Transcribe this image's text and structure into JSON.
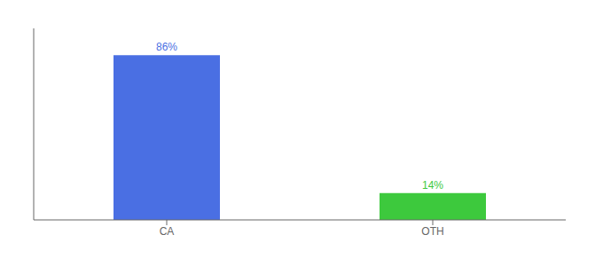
{
  "chart_data": {
    "type": "bar",
    "categories": [
      "CA",
      "OTH"
    ],
    "values": [
      86,
      14
    ],
    "value_labels": [
      "86%",
      "14%"
    ],
    "data_labels": true,
    "colors": [
      "#4A6FE3",
      "#3DC93D"
    ],
    "ylim": [
      0,
      100
    ],
    "tick_labels": "x",
    "grid": false
  }
}
